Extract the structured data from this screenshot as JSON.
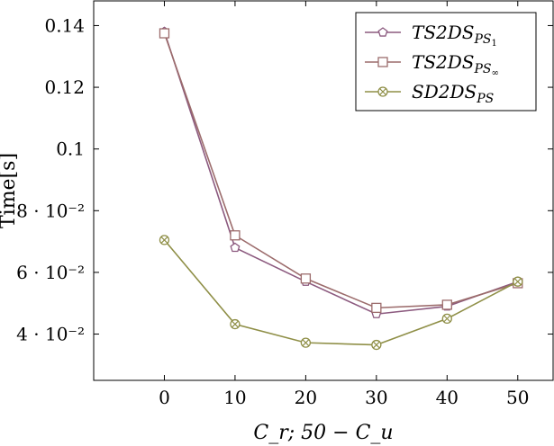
{
  "chart_data": {
    "type": "line",
    "x": [
      0,
      10,
      20,
      30,
      40,
      50
    ],
    "xlabel": "C_r; 50 − C_u",
    "ylabel": "Time[s]",
    "xlim": [
      -10,
      55
    ],
    "ylim": [
      0.025,
      0.148
    ],
    "x_ticks": [
      "0",
      "10",
      "20",
      "30",
      "40",
      "50"
    ],
    "y_ticks": [
      {
        "value": 0.04,
        "label": "4 · 10⁻²"
      },
      {
        "value": 0.06,
        "label": "6 · 10⁻²"
      },
      {
        "value": 0.08,
        "label": "8 · 10⁻²"
      },
      {
        "value": 0.1,
        "label": "0.1"
      },
      {
        "value": 0.12,
        "label": "0.12"
      },
      {
        "value": 0.14,
        "label": "0.14"
      }
    ],
    "legend_position": "top-right",
    "grid": false,
    "series": [
      {
        "name": "TS2DS_PS₁",
        "base": "TS2DS",
        "sub": "PS",
        "subsub": "1",
        "marker": "pentagon",
        "color": "#8c5a7f",
        "values": [
          0.138,
          0.068,
          0.057,
          0.0465,
          0.049,
          0.057
        ]
      },
      {
        "name": "TS2DS_PS∞",
        "base": "TS2DS",
        "sub": "PS",
        "subsub": "∞",
        "marker": "square",
        "color": "#9c6c6c",
        "values": [
          0.1375,
          0.072,
          0.058,
          0.0485,
          0.0495,
          0.0565
        ]
      },
      {
        "name": "SD2DS_PS",
        "base": "SD2DS",
        "sub": "PS",
        "subsub": "",
        "marker": "circle-x",
        "color": "#8f8f47",
        "values": [
          0.0705,
          0.0432,
          0.0372,
          0.0365,
          0.045,
          0.057
        ]
      }
    ]
  }
}
